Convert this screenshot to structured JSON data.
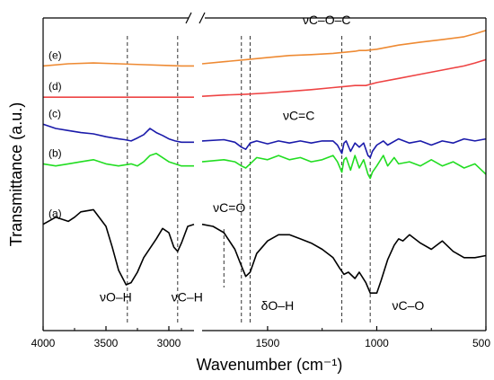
{
  "chart_data": {
    "type": "line",
    "xlabel": "Wavenumber (cm⁻¹)",
    "ylabel": "Transmittance (a.u.)",
    "x_tick_labels": [
      "4000",
      "3500",
      "3000",
      "1500",
      "1000",
      "500"
    ],
    "x_ticks": [
      4000,
      3500,
      3000,
      1500,
      1000,
      500
    ],
    "x_axis_break": {
      "after": 2800,
      "resume": 1800
    },
    "x_reversed": true,
    "y_ticks_shown": false,
    "grid": false,
    "series": [
      {
        "name": "(a)",
        "color": "#000000",
        "x": [
          4000,
          3900,
          3800,
          3750,
          3700,
          3600,
          3500,
          3450,
          3400,
          3340,
          3300,
          3250,
          3200,
          3100,
          3050,
          3000,
          2960,
          2930,
          2900,
          2850,
          2800,
          1800,
          1750,
          1700,
          1650,
          1620,
          1600,
          1580,
          1550,
          1500,
          1450,
          1400,
          1350,
          1300,
          1250,
          1200,
          1170,
          1150,
          1130,
          1100,
          1080,
          1050,
          1030,
          1000,
          980,
          950,
          920,
          900,
          880,
          850,
          800,
          750,
          700,
          650,
          600,
          550,
          500
        ],
        "y": [
          2.55,
          2.72,
          2.62,
          2.72,
          2.85,
          2.9,
          2.5,
          2.0,
          1.45,
          1.1,
          1.15,
          1.4,
          1.75,
          2.2,
          2.45,
          2.35,
          2.0,
          1.9,
          2.1,
          2.5,
          2.55,
          2.55,
          2.5,
          2.35,
          1.95,
          1.55,
          1.3,
          1.4,
          1.85,
          2.15,
          2.3,
          2.3,
          2.2,
          2.1,
          1.95,
          1.75,
          1.5,
          1.35,
          1.4,
          1.25,
          1.4,
          1.15,
          0.9,
          0.9,
          1.2,
          1.7,
          2.05,
          2.2,
          2.15,
          2.3,
          2.1,
          1.95,
          2.15,
          1.9,
          1.75,
          1.75,
          1.8
        ]
      },
      {
        "name": "(b)",
        "color": "#22dd22",
        "x": [
          4000,
          3900,
          3800,
          3700,
          3600,
          3500,
          3400,
          3300,
          3250,
          3200,
          3150,
          3100,
          3050,
          3000,
          2950,
          2900,
          2850,
          2800,
          1800,
          1700,
          1650,
          1620,
          1600,
          1580,
          1550,
          1500,
          1450,
          1400,
          1350,
          1300,
          1250,
          1200,
          1180,
          1160,
          1150,
          1140,
          1120,
          1100,
          1080,
          1060,
          1040,
          1030,
          1020,
          1000,
          970,
          950,
          920,
          900,
          850,
          800,
          750,
          700,
          650,
          600,
          550,
          510,
          500
        ],
        "y": [
          4.0,
          3.95,
          4.0,
          4.05,
          4.1,
          4.0,
          3.95,
          4.0,
          3.95,
          4.05,
          4.2,
          4.25,
          4.15,
          4.05,
          4.0,
          3.95,
          3.95,
          3.95,
          4.05,
          4.1,
          4.05,
          3.95,
          3.9,
          4.0,
          4.15,
          4.1,
          4.2,
          4.1,
          4.15,
          4.05,
          4.1,
          4.2,
          4.05,
          3.8,
          4.1,
          4.15,
          3.85,
          4.2,
          3.9,
          4.1,
          3.75,
          3.65,
          3.8,
          3.95,
          4.2,
          3.95,
          4.15,
          4.0,
          4.05,
          3.95,
          4.1,
          3.95,
          4.05,
          3.9,
          4.0,
          3.8,
          3.75
        ]
      },
      {
        "name": "(c)",
        "color": "#1a1aaa",
        "x": [
          4000,
          3900,
          3800,
          3700,
          3600,
          3500,
          3400,
          3350,
          3300,
          3250,
          3200,
          3150,
          3100,
          3050,
          3000,
          2950,
          2900,
          2850,
          2800,
          1800,
          1700,
          1650,
          1620,
          1600,
          1580,
          1550,
          1500,
          1450,
          1400,
          1350,
          1300,
          1250,
          1200,
          1180,
          1160,
          1150,
          1140,
          1120,
          1100,
          1080,
          1060,
          1040,
          1030,
          1020,
          1000,
          970,
          950,
          900,
          850,
          800,
          750,
          700,
          650,
          600,
          550,
          500
        ],
        "y": [
          4.95,
          4.85,
          4.8,
          4.75,
          4.72,
          4.65,
          4.6,
          4.58,
          4.55,
          4.62,
          4.7,
          4.85,
          4.75,
          4.68,
          4.6,
          4.55,
          4.52,
          4.52,
          4.52,
          4.55,
          4.58,
          4.52,
          4.4,
          4.35,
          4.5,
          4.55,
          4.48,
          4.55,
          4.5,
          4.55,
          4.5,
          4.55,
          4.55,
          4.45,
          4.25,
          4.5,
          4.55,
          4.3,
          4.5,
          4.4,
          4.5,
          4.2,
          4.15,
          4.3,
          4.45,
          4.55,
          4.45,
          4.6,
          4.5,
          4.55,
          4.45,
          4.55,
          4.5,
          4.6,
          4.55,
          4.6
        ]
      },
      {
        "name": "(d)",
        "color": "#ee4444",
        "x": [
          4000,
          3800,
          3600,
          3400,
          3200,
          3000,
          2900,
          2800,
          1800,
          1700,
          1600,
          1500,
          1400,
          1300,
          1200,
          1100,
          1050,
          1000,
          900,
          800,
          700,
          600,
          550,
          500
        ],
        "y": [
          5.6,
          5.6,
          5.6,
          5.6,
          5.6,
          5.6,
          5.6,
          5.6,
          5.62,
          5.65,
          5.67,
          5.7,
          5.74,
          5.78,
          5.83,
          5.88,
          5.88,
          5.95,
          6.05,
          6.15,
          6.25,
          6.35,
          6.42,
          6.5
        ]
      },
      {
        "name": "(e)",
        "color": "#ee8a33",
        "x": [
          4000,
          3800,
          3600,
          3400,
          3200,
          3000,
          2900,
          2800,
          1800,
          1700,
          1600,
          1500,
          1400,
          1300,
          1200,
          1100,
          1080,
          1050,
          1000,
          900,
          800,
          700,
          600,
          550,
          500
        ],
        "y": [
          6.35,
          6.4,
          6.42,
          6.4,
          6.38,
          6.36,
          6.35,
          6.35,
          6.4,
          6.45,
          6.5,
          6.55,
          6.6,
          6.62,
          6.65,
          6.7,
          6.72,
          6.72,
          6.75,
          6.85,
          6.92,
          6.98,
          7.05,
          7.12,
          7.2
        ]
      }
    ],
    "reference_lines": [
      3330,
      2930,
      1620,
      1580,
      1160,
      1030
    ],
    "reference_line_ticks": [
      1700
    ],
    "annotations": [
      {
        "text": "νO–H",
        "x": 3550,
        "y": 0.7
      },
      {
        "text": "νC–H",
        "x": 2980,
        "y": 0.7
      },
      {
        "text": "νC=O",
        "x": 1750,
        "y": 2.85
      },
      {
        "text": "δO–H",
        "x": 1530,
        "y": 0.5
      },
      {
        "text": "νC–O",
        "x": 930,
        "y": 0.5
      },
      {
        "text": "νC=C",
        "x": 1430,
        "y": 5.05
      },
      {
        "text": "νC–O–C",
        "x": 1340,
        "y": 7.35
      }
    ]
  }
}
